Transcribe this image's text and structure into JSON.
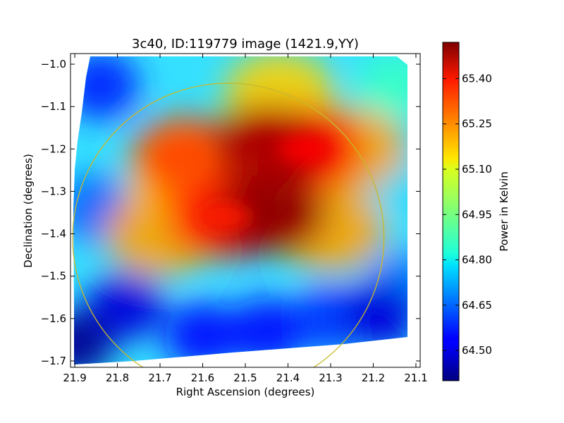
{
  "chart_data": {
    "type": "heatmap",
    "title": "3c40, ID:119779 image (1421.9,YY)",
    "xlabel": "Right Ascension (degrees)",
    "ylabel": "Declination (degrees)",
    "xlim": [
      21.91,
      21.09
    ],
    "ylim": [
      -1.715,
      -0.975
    ],
    "x_ticks": [
      21.9,
      21.8,
      21.7,
      21.6,
      21.5,
      21.4,
      21.3,
      21.2,
      21.1
    ],
    "x_tick_labels": [
      "21.9",
      "21.8",
      "21.7",
      "21.6",
      "21.5",
      "21.4",
      "21.3",
      "21.2",
      "21.1"
    ],
    "y_ticks": [
      -1.0,
      -1.1,
      -1.2,
      -1.3,
      -1.4,
      -1.5,
      -1.6,
      -1.7
    ],
    "y_tick_labels": [
      "−1.0",
      "−1.1",
      "−1.2",
      "−1.3",
      "−1.4",
      "−1.5",
      "−1.6",
      "−1.7"
    ],
    "grid": false,
    "colorbar": {
      "label": "Power in Kelvin",
      "range": [
        64.4,
        65.52
      ],
      "ticks": [
        64.5,
        64.65,
        64.8,
        64.95,
        65.1,
        65.25,
        65.4
      ],
      "tick_labels": [
        "64.50",
        "64.65",
        "64.80",
        "64.95",
        "65.10",
        "65.25",
        "65.40"
      ],
      "colormap": "jet"
    },
    "ellipse": {
      "center_ra": 21.54,
      "center_dec": -1.41,
      "radius_ra": 0.365,
      "radius_dec": 0.365,
      "color": "#c8b82c"
    },
    "field_features": [
      {
        "ra": 21.44,
        "dec": -1.35,
        "value": 65.5
      },
      {
        "ra": 21.45,
        "dec": -1.195,
        "value": 65.47
      },
      {
        "ra": 21.55,
        "dec": -1.36,
        "value": 65.35
      },
      {
        "ra": 21.64,
        "dec": -1.22,
        "value": 65.3
      },
      {
        "ra": 21.36,
        "dec": -1.2,
        "value": 65.38
      },
      {
        "ra": 21.65,
        "dec": -1.27,
        "value": 65.12
      },
      {
        "ra": 21.5,
        "dec": -1.27,
        "value": 65.15
      },
      {
        "ra": 21.42,
        "dec": -1.07,
        "value": 65.15
      },
      {
        "ra": 21.25,
        "dec": -1.2,
        "value": 65.2
      },
      {
        "ra": 21.3,
        "dec": -1.39,
        "value": 65.2
      },
      {
        "ra": 21.7,
        "dec": -1.4,
        "value": 65.2
      },
      {
        "ra": 21.84,
        "dec": -1.05,
        "value": 64.58
      },
      {
        "ra": 21.85,
        "dec": -1.34,
        "value": 64.65
      },
      {
        "ra": 21.9,
        "dec": -1.66,
        "value": 64.42
      },
      {
        "ra": 21.78,
        "dec": -1.57,
        "value": 64.5
      },
      {
        "ra": 21.6,
        "dec": -1.64,
        "value": 64.55
      },
      {
        "ra": 21.45,
        "dec": -1.63,
        "value": 64.55
      },
      {
        "ra": 21.3,
        "dec": -1.6,
        "value": 64.6
      },
      {
        "ra": 21.18,
        "dec": -1.59,
        "value": 64.5
      },
      {
        "ra": 21.13,
        "dec": -1.52,
        "value": 64.68
      },
      {
        "ra": 21.12,
        "dec": -1.28,
        "value": 64.78
      },
      {
        "ra": 21.15,
        "dec": -1.05,
        "value": 64.88
      }
    ]
  }
}
